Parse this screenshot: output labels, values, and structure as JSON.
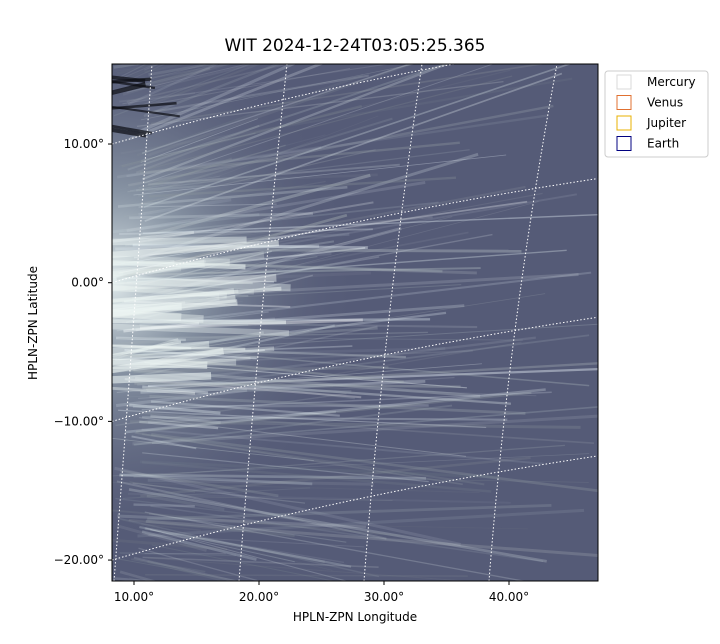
{
  "chart_data": {
    "type": "image",
    "title": "WIT 2024-12-24T03:05:25.365",
    "xlabel": "HPLN-ZPN Longitude",
    "ylabel": "HPLN-ZPN Latitude",
    "xlim": [
      8.24,
      47.12
    ],
    "ylim": [
      -21.51,
      15.77
    ],
    "xticks": [
      {
        "value": 10,
        "label": "10.00°"
      },
      {
        "value": 20,
        "label": "20.00°"
      },
      {
        "value": 30,
        "label": "30.00°"
      },
      {
        "value": 40,
        "label": "40.00°"
      }
    ],
    "yticks": [
      {
        "value": 10,
        "label": "10.00°"
      },
      {
        "value": 0,
        "label": "0.00°"
      },
      {
        "value": -10,
        "label": "−10.00°"
      },
      {
        "value": -20,
        "label": "−20.00°"
      }
    ],
    "grid": true,
    "legend": {
      "loc": "outside upper right",
      "entries": [
        {
          "name": "Mercury",
          "color": "#d9d9d9"
        },
        {
          "name": "Venus",
          "color": "#e07030"
        },
        {
          "name": "Jupiter",
          "color": "#e8b000"
        },
        {
          "name": "Earth",
          "color": "#000080"
        }
      ]
    }
  }
}
